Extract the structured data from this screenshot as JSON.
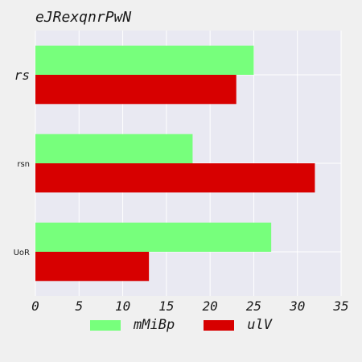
{
  "chart_data": {
    "type": "bar",
    "orientation": "horizontal",
    "title": "eJRexqnrPwN",
    "categories": [
      "rs",
      "rsn",
      "UoR"
    ],
    "series": [
      {
        "name": "mMiBp",
        "values": [
          25,
          18,
          27
        ],
        "color": "#77ff7c"
      },
      {
        "name": "ulV",
        "values": [
          23,
          32,
          13
        ],
        "color": "#d70000"
      }
    ],
    "xlim": [
      0,
      35
    ],
    "xticks": [
      0,
      5,
      10,
      15,
      20,
      25,
      30,
      35
    ],
    "grid": true,
    "legend": "bottom-center",
    "background": "#e9e9f2"
  }
}
